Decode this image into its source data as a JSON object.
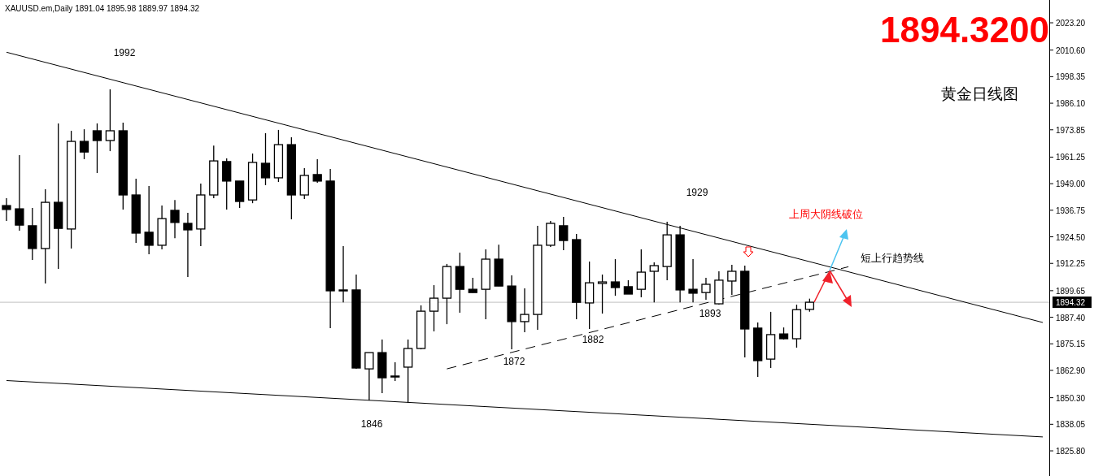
{
  "chart_data": {
    "type": "candlestick",
    "title": "黄金日线图",
    "categories": [
      null,
      null,
      null,
      null,
      null,
      null,
      null,
      null,
      null,
      null,
      null,
      null,
      null,
      null,
      null,
      null,
      null,
      null,
      null,
      null,
      null,
      null,
      null,
      null,
      null,
      null,
      null,
      null,
      null,
      null,
      null,
      null,
      null,
      null,
      null,
      null,
      null,
      null,
      null,
      null,
      null,
      null,
      null,
      null,
      null,
      null,
      null,
      null,
      null,
      null,
      null,
      null,
      null,
      null,
      null,
      null,
      null,
      null,
      null,
      null,
      null,
      null,
      null,
      null,
      null,
      null,
      null,
      null,
      null,
      null,
      null,
      null,
      null,
      null,
      null,
      null,
      null,
      null,
      null,
      null,
      null
    ],
    "ohlc": [
      [
        1938.9,
        1942.3,
        1931.8,
        1937.1
      ],
      [
        1937.4,
        1962.2,
        1927.3,
        1929.9
      ],
      [
        1929.6,
        1937.8,
        1913.8,
        1919.1
      ],
      [
        1919.1,
        1946.4,
        1903.0,
        1940.4
      ],
      [
        1940.4,
        1976.8,
        1909.7,
        1928.4
      ],
      [
        1928.1,
        1973.4,
        1919.1,
        1968.5
      ],
      [
        1968.5,
        1974.1,
        1960.3,
        1963.6
      ],
      [
        1973.4,
        1976.8,
        1953.9,
        1968.9
      ],
      [
        1968.9,
        1992.5,
        1964.0,
        1973.4
      ],
      [
        1973.4,
        1977.1,
        1937.1,
        1943.8
      ],
      [
        1943.8,
        1951.3,
        1921.7,
        1926.2
      ],
      [
        1926.6,
        1947.9,
        1916.5,
        1920.6
      ],
      [
        1920.6,
        1938.9,
        1918.7,
        1932.9
      ],
      [
        1936.7,
        1941.5,
        1923.9,
        1931.1
      ],
      [
        1930.7,
        1935.6,
        1906.0,
        1927.7
      ],
      [
        1928.1,
        1949.0,
        1920.2,
        1943.8
      ],
      [
        1943.8,
        1966.6,
        1942.3,
        1959.5
      ],
      [
        1959.2,
        1960.7,
        1937.1,
        1950.2
      ],
      [
        1950.2,
        1950.2,
        1937.8,
        1940.8
      ],
      [
        1941.5,
        1962.9,
        1940.0,
        1958.8
      ],
      [
        1958.4,
        1972.3,
        1948.3,
        1951.7
      ],
      [
        1951.7,
        1973.8,
        1949.8,
        1967.0
      ],
      [
        1967.0,
        1970.4,
        1932.6,
        1943.8
      ],
      [
        1943.8,
        1956.2,
        1941.9,
        1952.8
      ],
      [
        1953.2,
        1960.3,
        1949.4,
        1950.2
      ],
      [
        1950.2,
        1955.8,
        1882.4,
        1899.6
      ],
      [
        1900.0,
        1920.2,
        1894.3,
        1900.0
      ],
      [
        1900.0,
        1907.1,
        1863.6,
        1864.0
      ],
      [
        1863.6,
        1871.1,
        1849.0,
        1871.1
      ],
      [
        1871.1,
        1877.1,
        1852.4,
        1859.5
      ],
      [
        1860.3,
        1866.6,
        1858.0,
        1860.3
      ],
      [
        1864.4,
        1877.1,
        1847.9,
        1873.0
      ],
      [
        1873.0,
        1892.9,
        1872.6,
        1890.2
      ],
      [
        1890.2,
        1902.2,
        1880.9,
        1896.2
      ],
      [
        1896.2,
        1912.0,
        1884.2,
        1910.8
      ],
      [
        1910.8,
        1917.2,
        1889.5,
        1900.3
      ],
      [
        1900.3,
        1905.6,
        1898.8,
        1898.8
      ],
      [
        1900.3,
        1918.7,
        1886.5,
        1914.2
      ],
      [
        1914.2,
        1920.9,
        1901.8,
        1901.8
      ],
      [
        1901.8,
        1906.7,
        1872.6,
        1885.4
      ],
      [
        1885.4,
        1900.7,
        1880.5,
        1888.7
      ],
      [
        1888.7,
        1929.6,
        1881.6,
        1920.6
      ],
      [
        1920.6,
        1931.8,
        1919.8,
        1930.7
      ],
      [
        1929.6,
        1933.7,
        1918.3,
        1922.8
      ],
      [
        1923.2,
        1925.8,
        1886.5,
        1894.3
      ],
      [
        1894.0,
        1913.1,
        1882.0,
        1903.3
      ],
      [
        1903.0,
        1907.1,
        1889.1,
        1903.7
      ],
      [
        1903.7,
        1914.2,
        1897.3,
        1901.1
      ],
      [
        1901.5,
        1904.5,
        1898.1,
        1898.1
      ],
      [
        1900.3,
        1918.7,
        1896.6,
        1908.2
      ],
      [
        1908.6,
        1912.7,
        1894.3,
        1911.2
      ],
      [
        1910.8,
        1931.4,
        1904.5,
        1925.4
      ],
      [
        1925.4,
        1929.6,
        1894.3,
        1900.0
      ],
      [
        1900.3,
        1914.2,
        1894.3,
        1898.5
      ],
      [
        1898.8,
        1905.6,
        1895.5,
        1902.6
      ],
      [
        1893.6,
        1908.6,
        1893.2,
        1904.5
      ],
      [
        1904.1,
        1911.6,
        1897.7,
        1908.6
      ],
      [
        1908.6,
        1911.2,
        1868.9,
        1882.0
      ],
      [
        1882.4,
        1885.0,
        1859.9,
        1867.4
      ],
      [
        1868.1,
        1889.9,
        1864.0,
        1879.4
      ],
      [
        1879.7,
        1882.7,
        1877.1,
        1877.5
      ],
      [
        1877.5,
        1893.2,
        1873.4,
        1890.9
      ],
      [
        1891.04,
        1895.98,
        1889.97,
        1894.32
      ],
      null,
      null,
      null,
      null,
      null,
      null,
      null,
      null,
      null,
      null,
      null,
      null,
      null,
      null,
      null,
      null,
      null,
      null
    ],
    "series": [
      {
        "type": "line",
        "color": "#000000",
        "line_style": "solid",
        "values": [
          2009.6,
          null,
          null,
          null,
          null,
          null,
          null,
          null,
          null,
          null,
          null,
          null,
          null,
          null,
          null,
          null,
          null,
          null,
          null,
          null,
          null,
          null,
          null,
          null,
          null,
          null,
          null,
          null,
          null,
          null,
          null,
          null,
          null,
          null,
          null,
          null,
          null,
          null,
          null,
          null,
          null,
          null,
          null,
          null,
          null,
          null,
          null,
          null,
          null,
          null,
          null,
          null,
          null,
          null,
          null,
          null,
          null,
          null,
          null,
          null,
          null,
          null,
          null,
          null,
          null,
          null,
          null,
          null,
          null,
          null,
          null,
          null,
          null,
          null,
          null,
          null,
          null,
          null,
          null,
          null,
          1885.0
        ]
      },
      {
        "type": "line",
        "color": "#000000",
        "line_style": "solid",
        "values": [
          1858.2,
          null,
          null,
          null,
          null,
          null,
          null,
          null,
          null,
          null,
          null,
          null,
          null,
          null,
          null,
          null,
          null,
          null,
          null,
          null,
          null,
          null,
          null,
          null,
          null,
          null,
          null,
          null,
          null,
          null,
          null,
          null,
          null,
          null,
          null,
          null,
          null,
          null,
          null,
          null,
          null,
          null,
          null,
          null,
          null,
          null,
          null,
          null,
          null,
          null,
          null,
          null,
          null,
          null,
          null,
          null,
          null,
          null,
          null,
          null,
          null,
          null,
          null,
          null,
          null,
          null,
          null,
          null,
          null,
          null,
          null,
          null,
          null,
          null,
          null,
          null,
          null,
          null,
          null,
          null,
          1832.2
        ]
      },
      {
        "type": "line",
        "color": "#000000",
        "line_style": "dashed",
        "values": [
          null,
          null,
          null,
          null,
          null,
          null,
          null,
          null,
          null,
          null,
          null,
          null,
          null,
          null,
          null,
          null,
          null,
          null,
          null,
          null,
          null,
          null,
          null,
          null,
          null,
          null,
          null,
          null,
          null,
          null,
          null,
          null,
          null,
          null,
          1863.6,
          null,
          null,
          null,
          null,
          null,
          null,
          null,
          null,
          null,
          null,
          null,
          null,
          null,
          null,
          null,
          null,
          null,
          null,
          null,
          null,
          null,
          null,
          null,
          null,
          null,
          null,
          null,
          null,
          null,
          null,
          1910.7,
          null,
          null,
          null,
          null,
          null,
          null,
          null,
          null,
          null,
          null,
          null,
          null,
          null,
          null,
          null
        ]
      }
    ],
    "ylim": [
      1814.2,
      2033.7
    ],
    "yticks": [
      {
        "value": 2023.2,
        "label": "2023.20"
      },
      {
        "value": 2010.6,
        "label": "2010.60"
      },
      {
        "value": 1998.35,
        "label": "1998.35"
      },
      {
        "value": 1986.1,
        "label": "1986.10"
      },
      {
        "value": 1973.85,
        "label": "1973.85"
      },
      {
        "value": 1961.25,
        "label": "1961.25"
      },
      {
        "value": 1949.0,
        "label": "1949.00"
      },
      {
        "value": 1936.75,
        "label": "1936.75"
      },
      {
        "value": 1924.5,
        "label": "1924.50"
      },
      {
        "value": 1912.25,
        "label": "1912.25"
      },
      {
        "value": 1899.65,
        "label": "1899.65"
      },
      {
        "value": 1887.4,
        "label": "1887.40"
      },
      {
        "value": 1875.15,
        "label": "1875.15"
      },
      {
        "value": 1862.9,
        "label": "1862.90"
      },
      {
        "value": 1850.3,
        "label": "1850.30"
      },
      {
        "value": 1838.05,
        "label": "1838.05"
      },
      {
        "value": 1825.8,
        "label": "1825.80"
      }
    ],
    "tick_labels": "y",
    "grid": false,
    "ref_lines": [
      {
        "axis": "y",
        "value": 1894.32,
        "label": "1894.32",
        "color": "#c0c0c0"
      }
    ],
    "annotations": [
      "XAUUSD.em,Daily  1891.04 1895.98 1889.97 1894.32",
      "1894.3200",
      "1992",
      "1929",
      "1872",
      "1882",
      "1893",
      "1846",
      "上周大阴线破位",
      "短上行趋势线"
    ]
  }
}
